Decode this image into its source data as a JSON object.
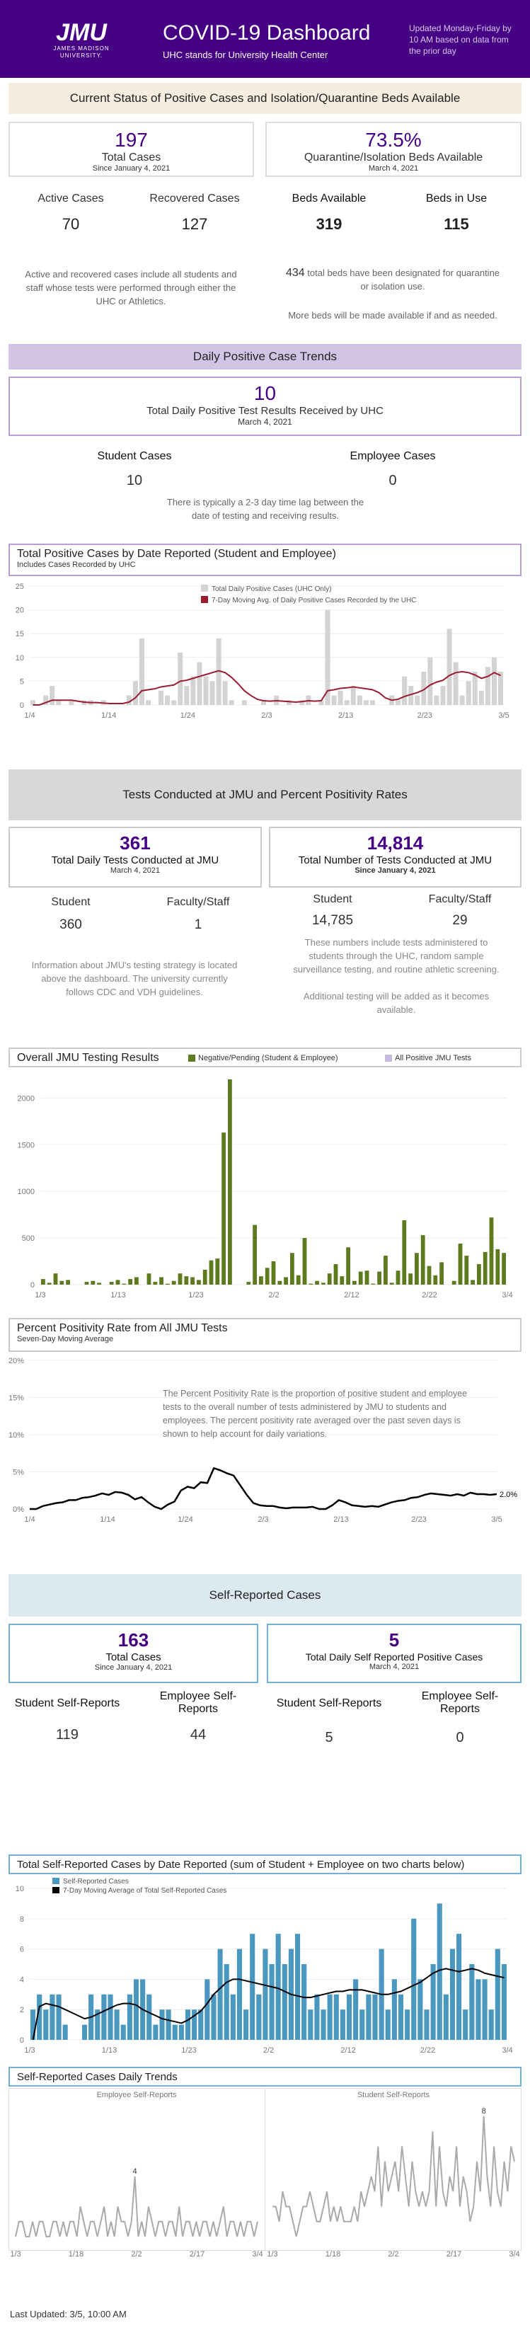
{
  "header": {
    "logo_main": "JMU",
    "logo_sub": "JAMES MADISON UNIVERSITY.",
    "title": "COVID-19 Dashboard",
    "subtitle": "UHC stands for University Health Center",
    "updated": "Updated Monday-Friday by 10 AM based on data from the prior day"
  },
  "status": {
    "band": "Current Status of Positive Cases and Isolation/Quarantine Beds Available",
    "total_cases": "197",
    "total_cases_label": "Total Cases",
    "total_cases_since": "Since January 4, 2021",
    "quar_pct": "73.5%",
    "quar_label": "Quarantine/Isolation Beds Available",
    "quar_date": "March 4, 2021",
    "active_label": "Active Cases",
    "active": "70",
    "recovered_label": "Recovered Cases",
    "recovered": "127",
    "beds_avail_label": "Beds Available",
    "beds_avail": "319",
    "beds_use_label": "Beds in Use",
    "beds_use": "115",
    "note_left": "Active and recovered cases include all students and staff whose tests were performed through either the UHC or Athletics.",
    "note_beds_num": "434",
    "note_beds": " total beds have been designated for quarantine or isolation use.",
    "note_more": "More beds will be made available if and as needed."
  },
  "daily": {
    "band": "Daily Positive Case Trends",
    "value": "10",
    "label": "Total Daily Positive Test Results Received by UHC",
    "date": "March 4, 2021",
    "student_label": "Student Cases",
    "student": "10",
    "employee_label": "Employee Cases",
    "employee": "0",
    "note": "There is typically a 2-3 day time lag between the date of testing and receiving results."
  },
  "tests": {
    "band": "Tests Conducted at JMU and Percent Positivity Rates",
    "daily_value": "361",
    "daily_label": "Total Daily Tests Conducted at JMU",
    "daily_date": "March 4, 2021",
    "total_value": "14,814",
    "total_label": "Total Number of Tests Conducted at JMU",
    "total_since": "Since January 4, 2021",
    "student_label": "Student",
    "student": "360",
    "faculty_label": "Faculty/Staff",
    "faculty": "1",
    "student_total": "14,785",
    "faculty_total": "29",
    "note_left": "Information about JMU's testing strategy is located above the dashboard. The university currently follows CDC and VDH guidelines.",
    "note_right": "These numbers include tests administered to students through the UHC, random sample surveillance testing, and routine athletic screening.",
    "note_right2": "Additional testing will be added as it becomes available.",
    "positivity_note": "The Percent Positivity Rate is the proportion of positive student and employee tests to the overall number of tests administered by JMU to students and employees.  The percent positivity rate averaged over the past seven days is shown to help account for daily variations."
  },
  "self": {
    "band": "Self-Reported Cases",
    "total": "163",
    "total_label": "Total Cases",
    "total_since": "Since January 4, 2021",
    "daily": "5",
    "daily_label": "Total Daily Self Reported Positive Cases",
    "daily_date": "March 4, 2021",
    "student_label": "Student Self-Reports",
    "student": "119",
    "employee_label": "Employee Self-Reports",
    "employee": "44",
    "student_daily": "5",
    "employee_daily": "0"
  },
  "footer": {
    "updated": "Last Updated: 3/5, 10:00 AM"
  },
  "colors": {
    "purple": "#450084",
    "bar_gray": "#d3d3d3",
    "line_red": "#9b1b30",
    "green": "#5e7a1f",
    "blue": "#4a98c0",
    "lilac": "#c8b8e0"
  },
  "chart_data": [
    {
      "id": "pos",
      "type": "bar",
      "title": "Total Positive Cases by Date Reported (Student and Employee)",
      "subtitle": "Includes Cases Recorded by UHC",
      "legend": [
        "Total Daily Positive Cases (UHC Only)",
        "7-Day Moving Avg. of Daily Positive Cases Recorded by the UHC"
      ],
      "x_ticks": [
        "1/4",
        "1/14",
        "1/24",
        "2/3",
        "2/13",
        "2/23",
        "3/5"
      ],
      "ylim": [
        0,
        25
      ],
      "y_ticks": [
        0,
        5,
        10,
        15,
        20,
        25
      ],
      "values": [
        1,
        0,
        2,
        4,
        1,
        0,
        1,
        0,
        1,
        1,
        0,
        1,
        0,
        0,
        0,
        2,
        5,
        14,
        1,
        0,
        3,
        2,
        1,
        11,
        4,
        6,
        9,
        6,
        5,
        14,
        5,
        1,
        0,
        1,
        0,
        0,
        1,
        0,
        2,
        0,
        1,
        0,
        1,
        2,
        0,
        1,
        20,
        2,
        3,
        1,
        4,
        2,
        1,
        1,
        0,
        0,
        2,
        1,
        6,
        4,
        2,
        7,
        10,
        2,
        4,
        16,
        9,
        2,
        5,
        7,
        3,
        8,
        10,
        7
      ],
      "avg": [
        0,
        0,
        0.5,
        1,
        1,
        1,
        1,
        0.8,
        0.6,
        0.5,
        0.5,
        0.4,
        0.3,
        0.3,
        0.3,
        0.6,
        1.5,
        3,
        3.2,
        3.4,
        3.8,
        4,
        4.2,
        5,
        5.2,
        5.6,
        6,
        6.4,
        6.8,
        7.2,
        6.8,
        5.8,
        4.5,
        3,
        2,
        1.2,
        0.9,
        0.8,
        0.9,
        0.8,
        0.7,
        0.6,
        0.7,
        0.9,
        0.8,
        0.9,
        3,
        3.2,
        3.5,
        3.6,
        3.8,
        3.6,
        3.4,
        3.2,
        2.6,
        1.5,
        1,
        1.2,
        1.8,
        2.2,
        2.6,
        3.2,
        4.2,
        4.8,
        5.2,
        6.2,
        6.8,
        7,
        6.8,
        6.3,
        5.6,
        6,
        6.8,
        6.2
      ]
    },
    {
      "id": "tests",
      "type": "bar",
      "title": "Overall JMU Testing Results",
      "legend": [
        "Negative/Pending (Student & Employee)",
        "All Positive JMU Tests"
      ],
      "x_ticks": [
        "1/3",
        "1/13",
        "1/23",
        "2/2",
        "2/12",
        "2/22",
        "3/4"
      ],
      "ylim": [
        0,
        2200
      ],
      "y_ticks": [
        0,
        500,
        1000,
        1500,
        2000
      ],
      "values": [
        60,
        20,
        120,
        40,
        50,
        0,
        0,
        30,
        40,
        20,
        0,
        30,
        50,
        10,
        60,
        80,
        0,
        120,
        30,
        80,
        10,
        40,
        120,
        90,
        80,
        50,
        160,
        260,
        280,
        1630,
        2200,
        0,
        0,
        30,
        640,
        90,
        180,
        250,
        40,
        80,
        340,
        100,
        500,
        10,
        40,
        20,
        120,
        220,
        90,
        400,
        40,
        140,
        150,
        10,
        140,
        310,
        20,
        150,
        690,
        120,
        340,
        530,
        200,
        100,
        240,
        0,
        40,
        440,
        310,
        50,
        220,
        350,
        720,
        380,
        340
      ]
    },
    {
      "id": "positivity",
      "type": "line",
      "title": "Percent Positivity Rate from All JMU Tests",
      "subtitle": "Seven-Day Moving Average",
      "x_ticks": [
        "1/4",
        "1/14",
        "1/24",
        "2/3",
        "2/13",
        "2/23",
        "3/5"
      ],
      "ylim": [
        0,
        20
      ],
      "y_ticks": [
        "0%",
        "5%",
        "10%",
        "15%",
        "20%"
      ],
      "end_label": "2.0%",
      "values": [
        0,
        0,
        0.4,
        0.6,
        0.8,
        0.9,
        1.2,
        1.2,
        1.5,
        1.6,
        1.8,
        2.1,
        1.9,
        2.3,
        2.2,
        1.9,
        1.3,
        1.6,
        0.9,
        0.3,
        0,
        0.6,
        1.0,
        2.5,
        3.0,
        2.8,
        3.6,
        3.5,
        5.5,
        5.2,
        4.8,
        4.5,
        3.2,
        1.9,
        0.8,
        0.5,
        0.4,
        0.4,
        0.2,
        0.1,
        0.2,
        0.2,
        0.2,
        0.3,
        0,
        0,
        0.5,
        1.2,
        0.9,
        0.5,
        0.4,
        0.3,
        0.4,
        0.3,
        0.6,
        0.9,
        1.1,
        1.2,
        1.5,
        1.6,
        1.9,
        2.1,
        2.0,
        1.9,
        1.8,
        2.0,
        1.8,
        2.2,
        2.0,
        2.0,
        1.9,
        2.0
      ]
    },
    {
      "id": "selfrep",
      "type": "bar",
      "title": "Total Self-Reported Cases by Date Reported (sum of Student + Employee on two charts below)",
      "legend": [
        "Self-Reported Cases",
        "7-Day Moving Average of Total Self-Reported Cases"
      ],
      "x_ticks": [
        "1/3",
        "1/13",
        "1/23",
        "2/2",
        "2/12",
        "2/22",
        "3/4"
      ],
      "ylim": [
        0,
        10
      ],
      "y_ticks": [
        0,
        2,
        4,
        6,
        8,
        10
      ],
      "values": [
        2,
        3,
        2,
        3,
        3,
        1,
        0,
        0,
        1,
        3,
        2,
        3,
        3,
        2,
        1,
        3,
        4,
        4,
        3,
        1,
        2,
        2,
        1,
        1,
        2,
        2,
        2,
        4,
        3,
        6,
        5,
        3,
        6,
        2,
        7,
        3,
        6,
        5,
        7,
        5,
        6,
        7,
        5,
        2,
        3,
        2,
        3,
        3,
        2,
        3,
        4,
        2,
        3,
        3,
        6,
        2,
        4,
        3,
        2,
        8,
        4,
        2,
        5,
        9,
        3,
        6,
        7,
        2,
        5,
        4,
        4,
        2,
        6,
        5
      ],
      "avg": [
        0,
        2.2,
        2.4,
        2.3,
        2.2,
        2,
        1.8,
        1.6,
        1.4,
        1.5,
        1.7,
        1.9,
        2.1,
        2.3,
        2.4,
        2.4,
        2.3,
        2,
        1.8,
        1.6,
        1.4,
        1.3,
        1.2,
        1.1,
        1.3,
        1.6,
        1.9,
        2.4,
        3,
        3.4,
        3.8,
        4,
        4,
        3.9,
        3.8,
        3.7,
        3.6,
        3.5,
        3.4,
        3.2,
        3,
        2.9,
        2.8,
        2.8,
        2.9,
        3,
        3.1,
        3.2,
        3.2,
        3.3,
        3.3,
        3.3,
        3.2,
        3.1,
        3,
        3,
        3.1,
        3.2,
        3.4,
        3.6,
        3.8,
        4.1,
        4.4,
        4.6,
        4.7,
        4.6,
        4.5,
        4.6,
        4.7,
        4.6,
        4.4,
        4.3,
        4.2,
        4.1
      ]
    },
    {
      "id": "emp",
      "type": "line",
      "title": "Employee Self-Reports",
      "x_ticks": [
        "1/3",
        "1/18",
        "2/2",
        "2/17",
        "3/4"
      ],
      "ylim": [
        0,
        8
      ],
      "peak_label": "4",
      "values": [
        0,
        1,
        1,
        0,
        0,
        1,
        0,
        1,
        1,
        0,
        0,
        1,
        1,
        0,
        1,
        0,
        1,
        1,
        0,
        2,
        1,
        0,
        1,
        1,
        0,
        1,
        2,
        0,
        1,
        0,
        2,
        1,
        1,
        0,
        1,
        4,
        0,
        1,
        0,
        2,
        1,
        0,
        1,
        1,
        0,
        1,
        1,
        0,
        2,
        0,
        1,
        1,
        0,
        1,
        0,
        1,
        1,
        0,
        1,
        0,
        1,
        2,
        0,
        1,
        1,
        0,
        1,
        0,
        1,
        1,
        0,
        1
      ]
    },
    {
      "id": "stu",
      "type": "line",
      "title": "Student Self-Reports",
      "x_ticks": [
        "1/3",
        "1/18",
        "2/2",
        "2/17",
        "3/4"
      ],
      "ylim": [
        0,
        8
      ],
      "peak_label": "8",
      "values": [
        2,
        2,
        1,
        3,
        2,
        2,
        1,
        0,
        1,
        2,
        2,
        3,
        2,
        1,
        1,
        2,
        3,
        1,
        2,
        1,
        2,
        1,
        1,
        1,
        2,
        1,
        3,
        2,
        3,
        4,
        3,
        6,
        2,
        5,
        3,
        4,
        5,
        3,
        6,
        4,
        2,
        5,
        3,
        2,
        3,
        2,
        3,
        7,
        2,
        6,
        3,
        2,
        4,
        3,
        6,
        2,
        4,
        3,
        1,
        2,
        5,
        3,
        8,
        4,
        2,
        6,
        3,
        2,
        5,
        3,
        6,
        5
      ]
    }
  ]
}
